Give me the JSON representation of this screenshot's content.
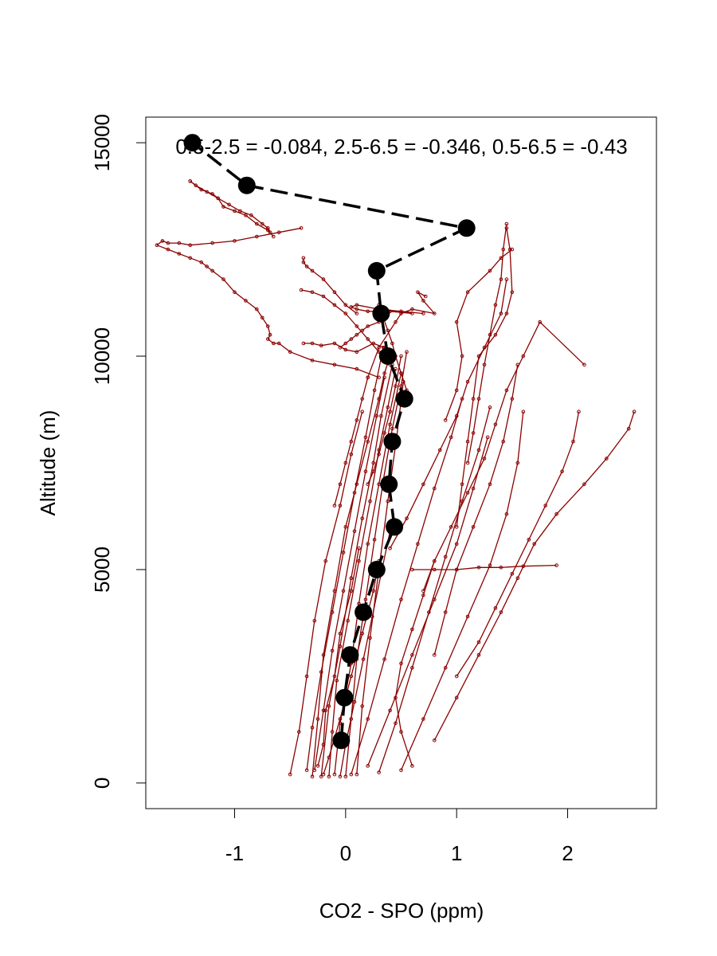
{
  "chart_data": {
    "type": "scatter",
    "title": "",
    "xlabel": "CO2 - SPO (ppm)",
    "ylabel": "Altitude (m)",
    "xlim": [
      -1.8,
      2.8
    ],
    "ylim": [
      -600,
      15600
    ],
    "xticks": [
      -1,
      0,
      1,
      2
    ],
    "yticks": [
      0,
      5000,
      10000,
      15000
    ],
    "annotation": "0.5-2.5 = -0.084, 2.5-6.5 = -0.346, 0.5-6.5 = -0.43",
    "colors": {
      "profiles": "#8b0000",
      "mean": "#000000"
    },
    "mean_profile": {
      "name": "",
      "x": [
        -0.04,
        -0.01,
        0.04,
        0.16,
        0.28,
        0.44,
        0.39,
        0.42,
        0.53,
        0.38,
        0.32,
        0.28,
        1.09,
        -0.89,
        -1.38
      ],
      "y": [
        1000,
        2000,
        3000,
        4000,
        5000,
        6000,
        7000,
        8000,
        9000,
        10000,
        11000,
        12000,
        13000,
        14000,
        15000
      ]
    },
    "profiles": [
      {
        "x": [
          -0.3,
          -0.25,
          -0.2,
          -0.1,
          0.0,
          0.1,
          0.2,
          0.3,
          0.35,
          0.4
        ],
        "y": [
          150,
          1500,
          3000,
          4500,
          6000,
          7000,
          8000,
          9000,
          9600,
          10000
        ]
      },
      {
        "x": [
          -0.22,
          -0.15,
          -0.05,
          0.05,
          0.15,
          0.25,
          0.32,
          0.42
        ],
        "y": [
          150,
          1800,
          3200,
          4800,
          6200,
          7500,
          8600,
          9800
        ]
      },
      {
        "x": [
          -0.1,
          -0.05,
          0.05,
          0.12,
          0.2,
          0.3,
          0.4,
          0.5
        ],
        "y": [
          200,
          1400,
          2800,
          4200,
          5600,
          7000,
          8400,
          9600
        ]
      },
      {
        "x": [
          -0.15,
          -0.12,
          -0.08,
          0.02,
          0.12,
          0.22,
          0.3,
          0.38,
          0.45
        ],
        "y": [
          150,
          1200,
          2400,
          3800,
          5200,
          6600,
          7800,
          8800,
          9700
        ]
      },
      {
        "x": [
          0.0,
          0.05,
          0.1,
          0.18,
          0.26,
          0.34,
          0.42,
          0.5,
          0.55
        ],
        "y": [
          150,
          1500,
          2900,
          4300,
          5700,
          7100,
          8300,
          9300,
          10100
        ]
      },
      {
        "x": [
          -0.28,
          -0.2,
          -0.12,
          -0.02,
          0.08,
          0.18,
          0.28,
          0.35
        ],
        "y": [
          300,
          1700,
          3100,
          4500,
          5900,
          7300,
          8600,
          9500
        ]
      },
      {
        "x": [
          -0.35,
          -0.3,
          -0.22,
          -0.12,
          -0.02,
          0.08,
          0.18,
          0.26,
          0.34
        ],
        "y": [
          300,
          1300,
          2600,
          4000,
          5400,
          6800,
          8100,
          9200,
          10200
        ]
      },
      {
        "x": [
          0.1,
          0.15,
          0.22,
          0.3,
          0.38,
          0.46,
          0.52
        ],
        "y": [
          200,
          1800,
          3400,
          5000,
          6600,
          8100,
          9400
        ]
      },
      {
        "x": [
          -0.5,
          -0.42,
          -0.35,
          -0.28,
          -0.18,
          -0.05,
          0.05,
          0.15
        ],
        "y": [
          200,
          1200,
          2500,
          3800,
          5200,
          6500,
          7700,
          8700
        ]
      },
      {
        "x": [
          0.05,
          0.2,
          0.35,
          0.5,
          0.65,
          0.8,
          0.95,
          1.05
        ],
        "y": [
          200,
          1500,
          2900,
          4300,
          5600,
          6900,
          8100,
          9000
        ]
      },
      {
        "x": [
          0.3,
          0.45,
          0.6,
          0.75,
          0.9,
          1.05,
          1.2,
          1.3
        ],
        "y": [
          250,
          1400,
          2700,
          4000,
          5300,
          6600,
          7800,
          8800
        ]
      },
      {
        "x": [
          0.2,
          0.4,
          0.6,
          0.8,
          1.0,
          1.15,
          1.28
        ],
        "y": [
          400,
          1700,
          3000,
          4300,
          5600,
          6900,
          8100
        ]
      },
      {
        "x": [
          0.5,
          0.7,
          0.9,
          1.1,
          1.3,
          1.45,
          1.55,
          1.6
        ],
        "y": [
          300,
          1500,
          2700,
          3900,
          5100,
          6300,
          7500,
          8700
        ]
      },
      {
        "x": [
          0.8,
          1.0,
          1.2,
          1.4,
          1.55,
          1.7,
          1.9,
          2.15,
          2.35,
          2.55,
          2.6
        ],
        "y": [
          1000,
          2000,
          3000,
          4000,
          4800,
          5600,
          6300,
          7000,
          7600,
          8300,
          8700
        ]
      },
      {
        "x": [
          1.0,
          1.2,
          1.35,
          1.5,
          1.65,
          1.8,
          1.95,
          2.05,
          2.1
        ],
        "y": [
          2500,
          3300,
          4100,
          4900,
          5700,
          6500,
          7300,
          8000,
          8700
        ]
      },
      {
        "x": [
          0.8,
          0.9,
          1.0,
          1.15,
          1.3,
          1.42,
          1.5,
          1.55
        ],
        "y": [
          3000,
          4000,
          5000,
          6000,
          7000,
          8000,
          9000,
          9800
        ]
      },
      {
        "x": [
          0.7,
          0.8,
          0.95,
          1.1,
          1.25,
          1.35,
          1.45,
          1.6,
          1.75,
          2.15
        ],
        "y": [
          4500,
          5200,
          6000,
          6800,
          7600,
          8400,
          9200,
          10000,
          10800,
          9800
        ]
      },
      {
        "x": [
          0.4,
          0.55,
          0.7,
          0.85,
          1.0,
          1.1,
          1.25,
          1.4,
          1.45
        ],
        "y": [
          5500,
          6200,
          7000,
          7800,
          8600,
          9400,
          10200,
          11000,
          11800
        ]
      },
      {
        "x": [
          0.6,
          0.8,
          1.0,
          1.2,
          1.4,
          1.6,
          1.9
        ],
        "y": [
          5000,
          5000,
          5000,
          5050,
          5050,
          5080,
          5100
        ]
      },
      {
        "x": [
          1.0,
          1.05,
          1.1,
          1.15,
          1.2,
          1.35,
          1.45,
          1.5,
          1.48,
          1.45
        ],
        "y": [
          6000,
          7000,
          8000,
          9000,
          10000,
          10500,
          11000,
          11500,
          12500,
          13000
        ]
      },
      {
        "x": [
          1.1,
          1.15,
          1.2,
          1.25,
          1.3,
          1.35,
          1.4,
          1.42,
          1.45
        ],
        "y": [
          7500,
          8200,
          9000,
          9800,
          10500,
          11200,
          11800,
          12500,
          13100
        ]
      },
      {
        "x": [
          0.9,
          1.0,
          1.05,
          1.0,
          1.1,
          1.3,
          1.4,
          1.5
        ],
        "y": [
          8500,
          9200,
          10000,
          10800,
          11500,
          12000,
          12300,
          12500
        ]
      },
      {
        "x": [
          0.2,
          0.3,
          0.45,
          0.5,
          0.6,
          0.8,
          0.7,
          0.65,
          0.72
        ],
        "y": [
          9500,
          10200,
          10800,
          11000,
          11100,
          11000,
          11300,
          11500,
          11400
        ]
      },
      {
        "x": [
          0.4,
          0.3,
          0.2,
          0.1,
          0.0,
          -0.1,
          -0.2,
          -0.3,
          -0.4
        ],
        "y": [
          9800,
          10100,
          10400,
          10700,
          11000,
          11200,
          11400,
          11500,
          11550
        ]
      },
      {
        "x": [
          0.35,
          0.25,
          0.1,
          0.0,
          -0.1,
          -0.22,
          -0.3,
          -0.38
        ],
        "y": [
          10200,
          10300,
          10100,
          10150,
          10300,
          10250,
          10300,
          10300
        ]
      },
      {
        "x": [
          0.1,
          0.0,
          -0.1,
          -0.2,
          -0.3,
          -0.35,
          -0.38,
          -0.38
        ],
        "y": [
          11000,
          11200,
          11500,
          11800,
          12000,
          12100,
          12200,
          12300
        ]
      },
      {
        "x": [
          0.3,
          0.1,
          -0.1,
          -0.3,
          -0.5,
          -0.6,
          -0.65,
          -0.7,
          -0.68,
          -0.7,
          -0.75,
          -0.8,
          -0.9,
          -1.0,
          -1.1,
          -1.2,
          -1.25,
          -1.3,
          -1.4,
          -1.5,
          -1.6,
          -1.7,
          -1.65,
          -1.6,
          -1.5,
          -1.4,
          -1.2,
          -1.0,
          -0.8,
          -0.6,
          -0.4
        ],
        "y": [
          9500,
          9700,
          9800,
          9900,
          10100,
          10300,
          10300,
          10400,
          10500,
          10700,
          10900,
          11100,
          11300,
          11500,
          11800,
          12000,
          12100,
          12200,
          12300,
          12400,
          12500,
          12600,
          12700,
          12650,
          12650,
          12600,
          12650,
          12700,
          12800,
          12900,
          13000
        ]
      },
      {
        "x": [
          -0.65,
          -0.7,
          -0.8,
          -0.9,
          -1.0,
          -1.1,
          -1.15,
          -1.2,
          -1.3,
          -1.4
        ],
        "y": [
          12800,
          12950,
          13100,
          13300,
          13400,
          13500,
          13700,
          13800,
          13900,
          14100
        ]
      },
      {
        "x": [
          -1.4,
          -1.35,
          -1.25,
          -1.15,
          -1.05,
          -0.95,
          -0.85,
          -0.75,
          -0.7,
          -0.68
        ],
        "y": [
          14100,
          14000,
          13850,
          13700,
          13550,
          13400,
          13300,
          13100,
          13000,
          12900
        ]
      },
      {
        "x": [
          0.3,
          0.2,
          0.15,
          0.1,
          0.05,
          0.0,
          -0.05
        ],
        "y": [
          10800,
          10700,
          10600,
          10500,
          10400,
          10300,
          10200
        ]
      },
      {
        "x": [
          0.55,
          0.5,
          0.45,
          0.42,
          0.38,
          0.34,
          0.3
        ],
        "y": [
          9200,
          9600,
          10000,
          10300,
          10600,
          10900,
          11200
        ]
      },
      {
        "x": [
          0.2,
          0.25,
          0.3,
          0.35,
          0.4,
          0.45,
          0.5
        ],
        "y": [
          7000,
          7300,
          7700,
          8200,
          8700,
          9300,
          10000
        ]
      },
      {
        "x": [
          -0.1,
          -0.05,
          0.0,
          0.05,
          0.1,
          0.15,
          0.2
        ],
        "y": [
          6500,
          7000,
          7500,
          8000,
          8500,
          9000,
          9500
        ]
      },
      {
        "x": [
          -0.25,
          -0.2,
          -0.18,
          -0.1,
          -0.05,
          0.05,
          0.12
        ],
        "y": [
          400,
          900,
          1700,
          2500,
          3500,
          4500,
          5500
        ]
      },
      {
        "x": [
          -0.05,
          0.0,
          0.08,
          0.16,
          0.24,
          0.32,
          0.4
        ],
        "y": [
          150,
          900,
          1900,
          2900,
          3900,
          4900,
          5900
        ]
      },
      {
        "x": [
          -0.2,
          -0.15,
          -0.05,
          0.05,
          0.15,
          0.25,
          0.3
        ],
        "y": [
          200,
          600,
          1500,
          2500,
          3500,
          4500,
          5200
        ]
      },
      {
        "x": [
          0.6,
          0.5,
          0.45,
          0.5,
          0.6,
          0.7,
          0.8
        ],
        "y": [
          400,
          1200,
          2000,
          2800,
          3600,
          4400,
          5200
        ]
      },
      {
        "x": [
          0.6,
          0.4,
          0.2,
          0.1,
          0.05,
          0.1,
          0.3,
          0.5,
          0.7
        ],
        "y": [
          11000,
          11050,
          11050,
          11100,
          11150,
          11200,
          11100,
          11050,
          11000
        ]
      }
    ]
  }
}
